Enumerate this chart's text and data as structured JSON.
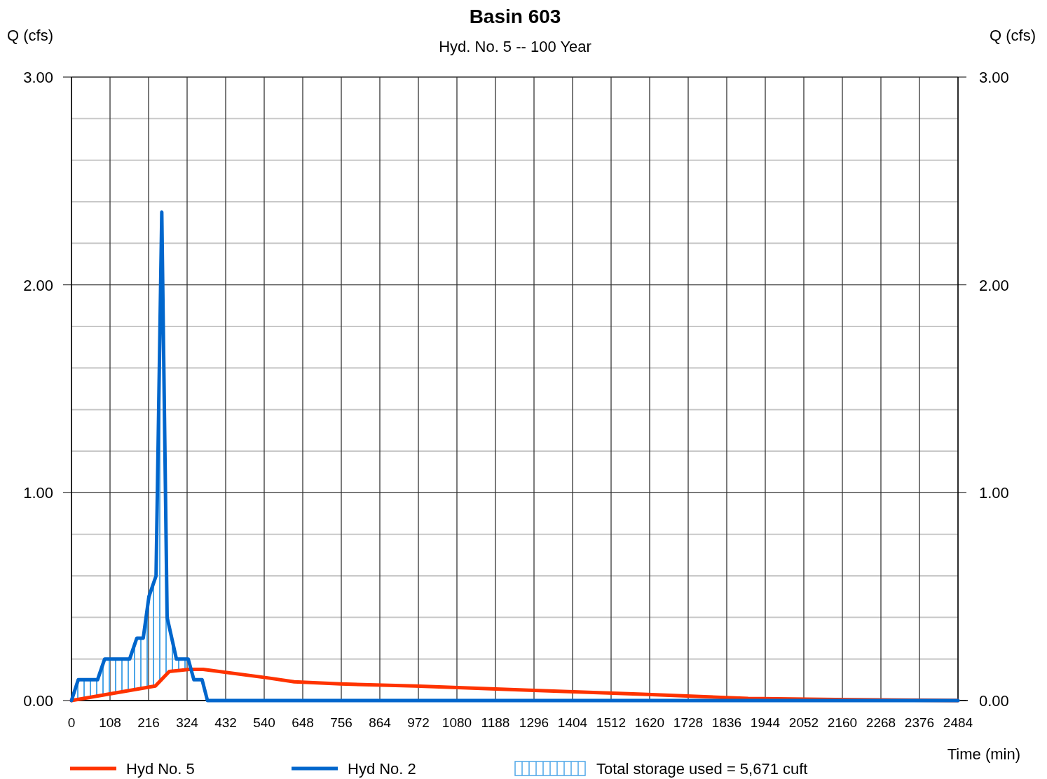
{
  "chart_data": {
    "type": "line",
    "title": "Basin 603",
    "subtitle": "Hyd. No. 5 -- 100 Year",
    "ylabel": "Q (cfs)",
    "y2label": "Q (cfs)",
    "xlabel": "Time (min)",
    "xlim": [
      0,
      2484
    ],
    "xticks": [
      0,
      108,
      216,
      324,
      432,
      540,
      648,
      756,
      864,
      972,
      1080,
      1188,
      1296,
      1404,
      1512,
      1620,
      1728,
      1836,
      1944,
      2052,
      2160,
      2268,
      2376,
      2484
    ],
    "ylim": [
      0,
      3
    ],
    "yticks": [
      {
        "value": 0,
        "label": "0.00"
      },
      {
        "value": 0.2,
        "label": null
      },
      {
        "value": 0.4,
        "label": null
      },
      {
        "value": 0.6,
        "label": null
      },
      {
        "value": 0.8,
        "label": null
      },
      {
        "value": 1,
        "label": "1.00"
      },
      {
        "value": 1.2,
        "label": null
      },
      {
        "value": 1.4,
        "label": null
      },
      {
        "value": 1.6,
        "label": null
      },
      {
        "value": 1.8,
        "label": null
      },
      {
        "value": 2,
        "label": "2.00"
      },
      {
        "value": 2.2,
        "label": null
      },
      {
        "value": 2.4,
        "label": null
      },
      {
        "value": 2.6,
        "label": null
      },
      {
        "value": 2.8,
        "label": null
      },
      {
        "value": 3,
        "label": "3.00"
      }
    ],
    "y2lim": [
      0,
      3
    ],
    "y2ticks": [
      {
        "value": 0,
        "label": "0.00"
      },
      {
        "value": 1,
        "label": "1.00"
      },
      {
        "value": 2,
        "label": "2.00"
      },
      {
        "value": 3,
        "label": "3.00"
      }
    ],
    "grid": true,
    "legend": "bottom",
    "line_style": "solid",
    "annotations": [
      "Total storage used = 5,671 cuft"
    ],
    "series": [
      {
        "name": "Hyd No. 5",
        "color": "#ff3300",
        "x": [
          0,
          235,
          274,
          330,
          369,
          546,
          624,
          754,
          963,
          1282,
          1601,
          1896,
          2141,
          2484
        ],
        "values": [
          0,
          0.07,
          0.14,
          0.15,
          0.15,
          0.11,
          0.09,
          0.08,
          0.07,
          0.05,
          0.03,
          0.01,
          0.005,
          0
        ]
      },
      {
        "name": "Hyd No. 2",
        "color": "#0066cc",
        "x": [
          0,
          19,
          73,
          93,
          163,
          183,
          201,
          217,
          237,
          253,
          268,
          294,
          327,
          343,
          366,
          381,
          2484
        ],
        "values": [
          0,
          0.1,
          0.1,
          0.2,
          0.2,
          0.3,
          0.3,
          0.5,
          0.6,
          2.35,
          0.4,
          0.2,
          0.2,
          0.1,
          0.1,
          0,
          0
        ]
      }
    ]
  }
}
